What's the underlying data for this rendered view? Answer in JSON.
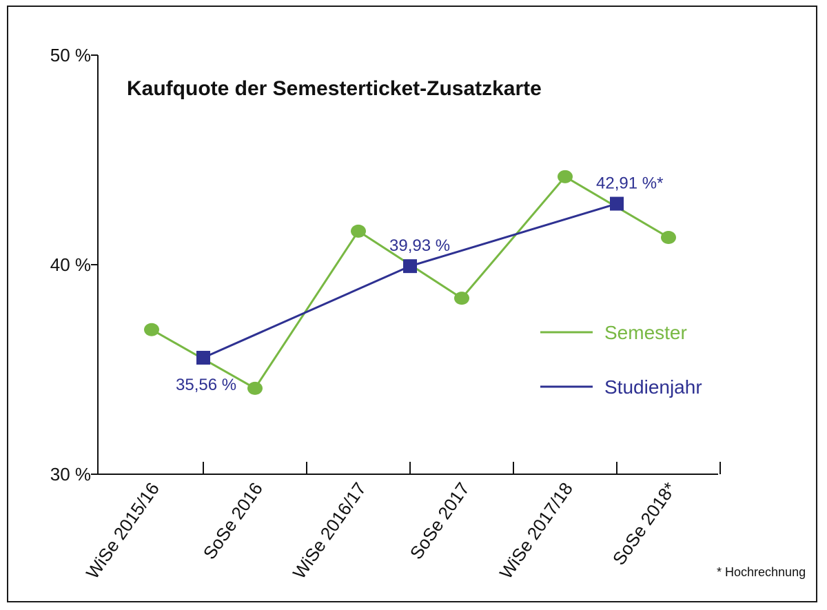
{
  "chart_data": {
    "type": "line",
    "title": "Kaufquote der Semesterticket-Zusatzkarte",
    "xlabel": "",
    "ylabel": "",
    "ylim": [
      30,
      50
    ],
    "y_ticks": [
      30,
      40,
      50
    ],
    "y_tick_labels": [
      "30 %",
      "40 %",
      "50 %"
    ],
    "categories": [
      "WiSe 2015/16",
      "SoSe 2016",
      "WiSe 2016/17",
      "SoSe 2017",
      "WiSe 2017/18",
      "SoSe 2018*"
    ],
    "series": [
      {
        "name": "Semester",
        "color": "#78b843",
        "marker": "circle",
        "x": [
          0,
          1,
          2,
          3,
          4,
          5
        ],
        "values": [
          36.9,
          34.1,
          41.6,
          38.4,
          44.2,
          41.3
        ]
      },
      {
        "name": "Studienjahr",
        "color": "#2e3192",
        "marker": "square",
        "x": [
          0.5,
          2.5,
          4.5
        ],
        "values": [
          35.56,
          39.93,
          42.91
        ],
        "labels": [
          "35,56 %",
          "39,93 %",
          "42,91 %*"
        ],
        "label_positions": [
          "below",
          "above",
          "above"
        ]
      }
    ],
    "legend": {
      "position": "right",
      "items": [
        "Semester",
        "Studienjahr"
      ]
    },
    "footnote": "* Hochrechnung"
  }
}
